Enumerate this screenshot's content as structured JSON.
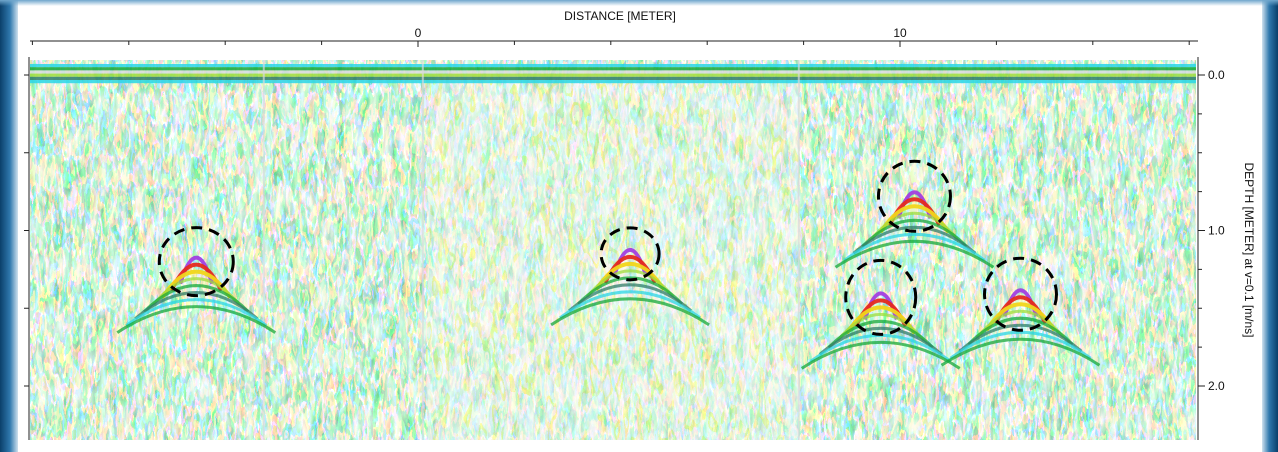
{
  "chart_data": {
    "type": "heatmap",
    "xlabel": "DISTANCE [METER]",
    "ylabel": "DEPTH [METER] at v=0.1 [m/ns]",
    "xlim": [
      -8.3,
      16.0
    ],
    "ylim": [
      0.0,
      2.3
    ],
    "x_ticks": [
      {
        "value": 0,
        "label": "0"
      },
      {
        "value": 10,
        "label": "10"
      }
    ],
    "y_ticks": [
      {
        "value": 0.0,
        "label": "0.0"
      },
      {
        "value": 1.0,
        "label": "1.0"
      },
      {
        "value": 2.0,
        "label": "2.0"
      }
    ],
    "palette": [
      "#ffffff",
      "#d7dbdc",
      "#2ad6e6",
      "#9ddc3c",
      "#16a83a",
      "#2f7c68",
      "#f1d61a",
      "#e52a1e",
      "#a23ee0"
    ],
    "highlighted_hyperbolas": [
      {
        "x": -4.6,
        "depth": 1.2
      },
      {
        "x": 4.4,
        "depth": 1.15
      },
      {
        "x": 10.3,
        "depth": 0.78
      },
      {
        "x": 9.6,
        "depth": 1.43
      },
      {
        "x": 12.5,
        "depth": 1.41
      }
    ]
  }
}
